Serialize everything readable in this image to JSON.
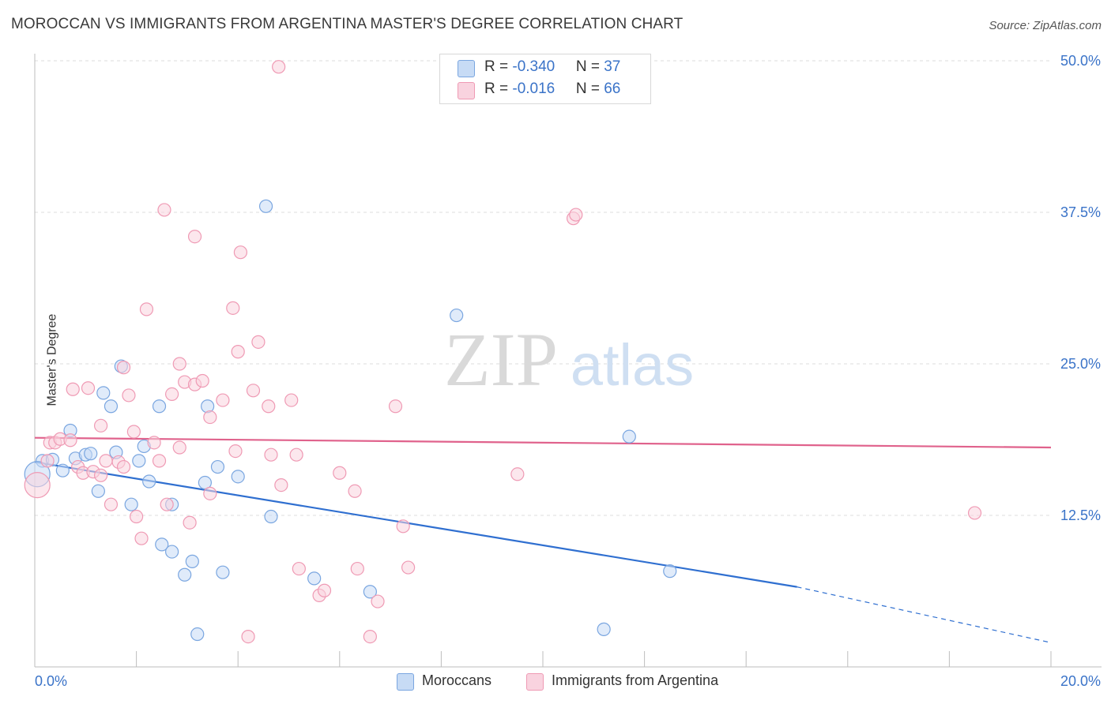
{
  "header": {
    "title": "MOROCCAN VS IMMIGRANTS FROM ARGENTINA MASTER'S DEGREE CORRELATION CHART",
    "source": "Source: ZipAtlas.com"
  },
  "watermark": {
    "zip": "ZIP",
    "atlas": "atlas"
  },
  "legend": {
    "rows": [
      {
        "r_label": "R = ",
        "r_value": "-0.340",
        "n_label": "N = ",
        "n_value": "37",
        "color": "#a9c8f0"
      },
      {
        "r_label": "R = ",
        "r_value": "-0.016",
        "n_label": "N = ",
        "n_value": "66",
        "color": "#f6b9cc"
      }
    ]
  },
  "bottom_legend": {
    "series_0": "Moroccans",
    "series_1": "Immigrants from Argentina"
  },
  "chart_data": {
    "type": "scatter",
    "ylabel": "Master's Degree",
    "xlim": [
      0,
      20
    ],
    "ylim": [
      0,
      50
    ],
    "y_ticks": [
      {
        "value": 12.5,
        "label": "12.5%"
      },
      {
        "value": 25.0,
        "label": "25.0%"
      },
      {
        "value": 37.5,
        "label": "37.5%"
      },
      {
        "value": 50.0,
        "label": "50.0%"
      }
    ],
    "x_tick_labels": [
      {
        "value": 0,
        "label": "0.0%"
      },
      {
        "value": 20,
        "label": "20.0%"
      }
    ],
    "x_minor_ticks": [
      2,
      4,
      6,
      8,
      10,
      12,
      14,
      16,
      18,
      20
    ],
    "series": [
      {
        "name": "Moroccans",
        "color": "#7aa6e0",
        "fill": "#c7dbf5",
        "line_color": "#2f6fd0",
        "trend": {
          "x0": 0,
          "y0": 16.9,
          "x1": 15.0,
          "y1": 6.6,
          "dash_to_x": 20,
          "dash_to_y": 2.0
        },
        "points": [
          [
            0.15,
            17.0
          ],
          [
            0.35,
            17.1
          ],
          [
            0.55,
            16.2
          ],
          [
            0.7,
            19.5
          ],
          [
            0.8,
            17.2
          ],
          [
            1.0,
            17.5
          ],
          [
            1.1,
            17.6
          ],
          [
            1.25,
            14.5
          ],
          [
            1.35,
            22.6
          ],
          [
            1.5,
            21.5
          ],
          [
            1.6,
            17.7
          ],
          [
            1.7,
            24.8
          ],
          [
            1.9,
            13.4
          ],
          [
            2.05,
            17.0
          ],
          [
            2.15,
            18.2
          ],
          [
            2.25,
            15.3
          ],
          [
            2.45,
            21.5
          ],
          [
            2.5,
            10.1
          ],
          [
            2.7,
            13.4
          ],
          [
            2.7,
            9.5
          ],
          [
            2.95,
            7.6
          ],
          [
            3.1,
            8.7
          ],
          [
            3.2,
            2.7
          ],
          [
            3.35,
            15.2
          ],
          [
            3.4,
            21.5
          ],
          [
            3.6,
            16.5
          ],
          [
            3.7,
            7.8
          ],
          [
            4.0,
            15.7
          ],
          [
            4.55,
            38.0
          ],
          [
            4.65,
            12.4
          ],
          [
            5.5,
            7.3
          ],
          [
            6.6,
            6.2
          ],
          [
            8.3,
            29.0
          ],
          [
            11.2,
            3.1
          ],
          [
            11.7,
            19.0
          ],
          [
            12.5,
            7.9
          ],
          [
            0.05,
            15.9
          ]
        ]
      },
      {
        "name": "Immigrants from Argentina",
        "color": "#ef9ab4",
        "fill": "#f9d3df",
        "line_color": "#e0628c",
        "trend": {
          "x0": 0,
          "y0": 18.9,
          "x1": 20,
          "y1": 18.1
        },
        "points": [
          [
            0.05,
            15.0
          ],
          [
            0.25,
            17.0
          ],
          [
            0.3,
            18.5
          ],
          [
            0.4,
            18.5
          ],
          [
            0.5,
            18.8
          ],
          [
            0.7,
            18.7
          ],
          [
            0.75,
            22.9
          ],
          [
            0.85,
            16.5
          ],
          [
            0.95,
            16.0
          ],
          [
            1.05,
            23.0
          ],
          [
            1.15,
            16.1
          ],
          [
            1.3,
            15.8
          ],
          [
            1.3,
            19.9
          ],
          [
            1.4,
            17.0
          ],
          [
            1.5,
            13.4
          ],
          [
            1.65,
            16.9
          ],
          [
            1.75,
            24.7
          ],
          [
            1.75,
            16.5
          ],
          [
            1.85,
            22.4
          ],
          [
            1.95,
            19.4
          ],
          [
            2.0,
            12.4
          ],
          [
            2.1,
            10.6
          ],
          [
            2.2,
            29.5
          ],
          [
            2.35,
            18.5
          ],
          [
            2.45,
            17.0
          ],
          [
            2.55,
            37.7
          ],
          [
            2.6,
            13.4
          ],
          [
            2.7,
            22.5
          ],
          [
            2.85,
            18.1
          ],
          [
            2.85,
            25.0
          ],
          [
            2.95,
            23.5
          ],
          [
            3.05,
            11.9
          ],
          [
            3.15,
            23.3
          ],
          [
            3.15,
            35.5
          ],
          [
            3.3,
            23.6
          ],
          [
            3.45,
            14.3
          ],
          [
            3.45,
            20.6
          ],
          [
            3.7,
            22.0
          ],
          [
            3.9,
            29.6
          ],
          [
            3.95,
            17.8
          ],
          [
            4.0,
            26.0
          ],
          [
            4.05,
            34.2
          ],
          [
            4.2,
            2.5
          ],
          [
            4.3,
            22.8
          ],
          [
            4.4,
            26.8
          ],
          [
            4.6,
            21.5
          ],
          [
            4.65,
            17.5
          ],
          [
            4.8,
            49.5
          ],
          [
            4.85,
            15.0
          ],
          [
            5.05,
            22.0
          ],
          [
            5.15,
            17.5
          ],
          [
            5.2,
            8.1
          ],
          [
            5.6,
            5.9
          ],
          [
            5.7,
            6.3
          ],
          [
            6.0,
            16.0
          ],
          [
            6.3,
            14.5
          ],
          [
            6.35,
            8.1
          ],
          [
            6.6,
            2.5
          ],
          [
            6.75,
            5.4
          ],
          [
            7.1,
            21.5
          ],
          [
            7.25,
            11.6
          ],
          [
            7.35,
            8.2
          ],
          [
            9.5,
            15.9
          ],
          [
            10.6,
            37.0
          ],
          [
            10.65,
            37.3
          ],
          [
            18.5,
            12.7
          ]
        ]
      }
    ]
  }
}
